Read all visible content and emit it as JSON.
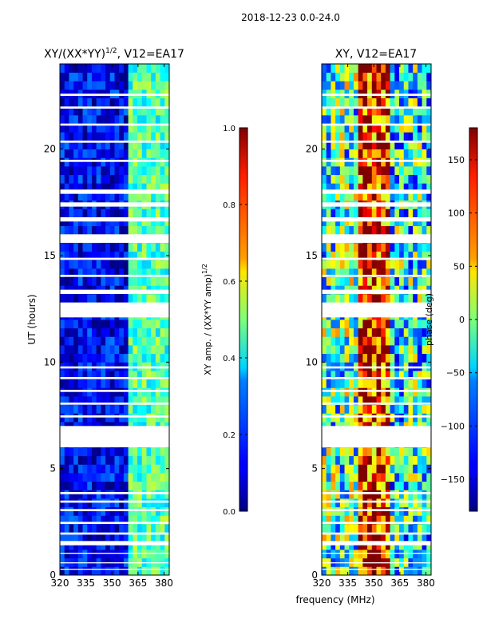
{
  "figure": {
    "suptitle": "2018-12-23 0.0-24.0",
    "shared_xlabel": "frequency (MHz)"
  },
  "chart_data": [
    {
      "type": "heatmap",
      "title": "XY/(XX*YY)",
      "title_exponent": "1/2",
      "title_suffix": ", V12=EA17",
      "xlabel": "",
      "ylabel": "UT (hours)",
      "xlim": [
        320,
        383
      ],
      "ylim": [
        0,
        24
      ],
      "xticks": [
        "320",
        "335",
        "350",
        "365",
        "380"
      ],
      "xtick_values": [
        320,
        335,
        350,
        365,
        380
      ],
      "yticks": [
        "0",
        "5",
        "10",
        "15",
        "20"
      ],
      "ytick_values": [
        0,
        5,
        10,
        15,
        20
      ],
      "colorbar": {
        "label": "XY amp. / (XX*YY amp)",
        "label_exponent": "1/2",
        "range": [
          0.0,
          1.0
        ],
        "ticks": [
          "0.0",
          "0.2",
          "0.4",
          "0.6",
          "0.8",
          "1.0"
        ],
        "tick_values": [
          0.0,
          0.2,
          0.4,
          0.6,
          0.8,
          1.0
        ],
        "colormap": "jet"
      },
      "bands": [
        {
          "f0": 320,
          "f1": 360,
          "value": 0.12,
          "note": "low amplitude region"
        },
        {
          "f0": 360,
          "f1": 383,
          "value": 0.45,
          "note": "brighter bands (columns)"
        }
      ],
      "gaps_hours": [
        [
          0.25,
          0.3
        ],
        [
          0.55,
          0.6
        ],
        [
          1.0,
          1.05
        ],
        [
          1.4,
          1.6
        ],
        [
          1.9,
          2.0
        ],
        [
          2.4,
          2.5
        ],
        [
          3.0,
          3.1
        ],
        [
          3.4,
          3.5
        ],
        [
          3.8,
          3.9
        ],
        [
          6.0,
          7.0
        ],
        [
          7.4,
          7.5
        ],
        [
          8.0,
          8.1
        ],
        [
          8.6,
          8.7
        ],
        [
          9.2,
          9.3
        ],
        [
          9.7,
          9.8
        ],
        [
          12.1,
          12.8
        ],
        [
          13.2,
          13.4
        ],
        [
          14.0,
          14.1
        ],
        [
          14.8,
          14.9
        ],
        [
          15.6,
          16.0
        ],
        [
          16.6,
          16.8
        ],
        [
          17.3,
          17.5
        ],
        [
          17.9,
          18.1
        ],
        [
          19.4,
          19.5
        ],
        [
          20.3,
          20.4
        ],
        [
          21.1,
          21.2
        ],
        [
          21.9,
          22.0
        ],
        [
          22.5,
          22.6
        ]
      ]
    },
    {
      "type": "heatmap",
      "title": "XY, V12=EA17",
      "xlabel": "",
      "ylabel": "",
      "xlim": [
        320,
        383
      ],
      "ylim": [
        0,
        24
      ],
      "xticks": [
        "320",
        "335",
        "350",
        "365",
        "380"
      ],
      "xtick_values": [
        320,
        335,
        350,
        365,
        380
      ],
      "yticks": [
        "0",
        "5",
        "10",
        "15",
        "20"
      ],
      "ytick_values": [
        0,
        5,
        10,
        15,
        20
      ],
      "colorbar": {
        "label": "phase (deg)",
        "range": [
          -180,
          180
        ],
        "ticks": [
          "−150",
          "−100",
          "−50",
          "0",
          "50",
          "100",
          "150"
        ],
        "tick_values": [
          -150,
          -100,
          -50,
          0,
          50,
          100,
          150
        ],
        "colormap": "jet"
      },
      "bands": [
        {
          "f0": 320,
          "f1": 340,
          "value": -20,
          "note": "mixed phases"
        },
        {
          "f0": 340,
          "f1": 360,
          "value": 130,
          "note": "mostly high phase (red)"
        },
        {
          "f0": 360,
          "f1": 383,
          "value": -40,
          "note": "mixed phases"
        }
      ],
      "gaps_hours": [
        [
          0.25,
          0.3
        ],
        [
          0.55,
          0.6
        ],
        [
          1.0,
          1.05
        ],
        [
          1.4,
          1.6
        ],
        [
          1.9,
          2.0
        ],
        [
          2.4,
          2.5
        ],
        [
          3.0,
          3.1
        ],
        [
          3.4,
          3.5
        ],
        [
          3.8,
          3.9
        ],
        [
          6.0,
          7.0
        ],
        [
          7.4,
          7.5
        ],
        [
          8.0,
          8.1
        ],
        [
          8.6,
          8.7
        ],
        [
          9.2,
          9.3
        ],
        [
          9.7,
          9.8
        ],
        [
          12.1,
          12.8
        ],
        [
          13.2,
          13.4
        ],
        [
          14.0,
          14.1
        ],
        [
          14.8,
          14.9
        ],
        [
          15.6,
          16.0
        ],
        [
          16.6,
          16.8
        ],
        [
          17.3,
          17.5
        ],
        [
          17.9,
          18.1
        ],
        [
          19.4,
          19.5
        ],
        [
          20.3,
          20.4
        ],
        [
          21.1,
          21.2
        ],
        [
          21.9,
          22.0
        ],
        [
          22.5,
          22.6
        ]
      ]
    }
  ]
}
